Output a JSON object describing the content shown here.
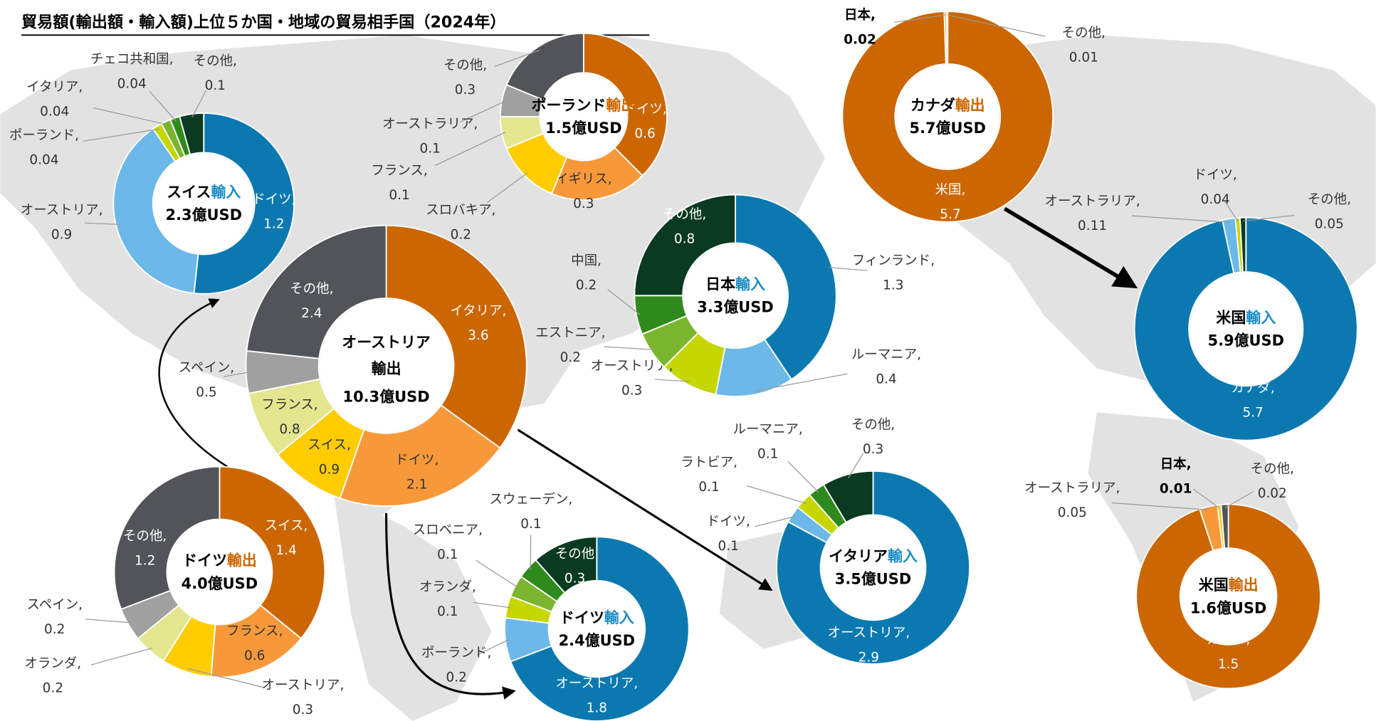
{
  "title": "貿易額(輸出額・輸入額)上位５か国・地域の貿易相手国（2024年）",
  "chart_data": [
    {
      "type": "pie",
      "donut": true,
      "center_name": "スイス",
      "flow": "輸入",
      "flow_color": "#1a8cc4",
      "total_label": "2.3億USD",
      "categories": [
        "ドイツ,",
        "オーストリア,",
        "ポーランド,",
        "イタリア,",
        "チェコ共和国,",
        "その他,"
      ],
      "values": [
        1.2,
        0.9,
        0.04,
        0.04,
        0.04,
        0.1
      ],
      "colors": [
        "#0b79b0",
        "#6cb8e8",
        "#c5d600",
        "#7ab530",
        "#2f8a1d",
        "#0a3a20"
      ]
    },
    {
      "type": "pie",
      "donut": true,
      "center_name": "オーストリア",
      "flow": "輸出",
      "flow_color": "#cc6600",
      "total_label": "10.3億USD",
      "categories": [
        "イタリア,",
        "ドイツ,",
        "スイス,",
        "フランス,",
        "スペイン,",
        "その他,"
      ],
      "values": [
        3.6,
        2.1,
        0.9,
        0.8,
        0.5,
        2.4
      ],
      "colors": [
        "#cc6600",
        "#f7993a",
        "#ffcc00",
        "#e3e68f",
        "#a0a0a0",
        "#515459"
      ]
    },
    {
      "type": "pie",
      "donut": true,
      "center_name": "ポーランド",
      "flow": "輸出",
      "flow_color": "#cc6600",
      "total_label": "1.5億USD",
      "categories": [
        "ドイツ,",
        "イギリス,",
        "スロバキア,",
        "フランス,",
        "オーストラリア,",
        "その他,"
      ],
      "values": [
        0.6,
        0.3,
        0.2,
        0.1,
        0.1,
        0.3
      ],
      "colors": [
        "#cc6600",
        "#f7993a",
        "#ffcc00",
        "#e3e68f",
        "#a0a0a0",
        "#515459"
      ]
    },
    {
      "type": "pie",
      "donut": true,
      "center_name": "日本",
      "flow": "輸入",
      "flow_color": "#1a8cc4",
      "total_label": "3.3億USD",
      "categories": [
        "フィンランド,",
        "ルーマニア,",
        "オーストリア,",
        "エストニア,",
        "中国,",
        "その他,"
      ],
      "values": [
        1.3,
        0.4,
        0.3,
        0.2,
        0.2,
        0.8
      ],
      "colors": [
        "#0b79b0",
        "#6cb8e8",
        "#c5d600",
        "#7ab530",
        "#2f8a1d",
        "#0a3a20"
      ]
    },
    {
      "type": "pie",
      "donut": true,
      "center_name": "カナダ",
      "flow": "輸出",
      "flow_color": "#cc6600",
      "total_label": "5.7億USD",
      "categories": [
        "米国,",
        "日本,",
        "その他,"
      ],
      "values": [
        5.7,
        0.02,
        0.01
      ],
      "colors": [
        "#cc6600",
        "#f7993a",
        "#515459"
      ]
    },
    {
      "type": "pie",
      "donut": true,
      "center_name": "米国",
      "flow": "輸入",
      "flow_color": "#1a8cc4",
      "total_label": "5.9億USD",
      "categories": [
        "カナダ,",
        "オーストラリア,",
        "ドイツ,",
        "その他,"
      ],
      "values": [
        5.7,
        0.11,
        0.04,
        0.05
      ],
      "colors": [
        "#0b79b0",
        "#6cb8e8",
        "#c5d600",
        "#0a3a20"
      ]
    },
    {
      "type": "pie",
      "donut": true,
      "center_name": "米国",
      "flow": "輸出",
      "flow_color": "#cc6600",
      "total_label": "1.6億USD",
      "categories": [
        "カナダ,",
        "オーストラリア,",
        "日本,",
        "その他,"
      ],
      "values": [
        1.5,
        0.05,
        0.01,
        0.02
      ],
      "colors": [
        "#cc6600",
        "#f7993a",
        "#ffcc00",
        "#515459"
      ]
    },
    {
      "type": "pie",
      "donut": true,
      "center_name": "ドイツ",
      "flow": "輸出",
      "flow_color": "#cc6600",
      "total_label": "4.0億USD",
      "categories": [
        "スイス,",
        "フランス,",
        "オーストリア,",
        "オランダ,",
        "スペイン,",
        "その他,"
      ],
      "values": [
        1.4,
        0.6,
        0.3,
        0.2,
        0.2,
        1.2
      ],
      "colors": [
        "#cc6600",
        "#f7993a",
        "#ffcc00",
        "#e3e68f",
        "#a0a0a0",
        "#515459"
      ]
    },
    {
      "type": "pie",
      "donut": true,
      "center_name": "ドイツ",
      "flow": "輸入",
      "flow_color": "#1a8cc4",
      "total_label": "2.4億USD",
      "categories": [
        "オーストリア,",
        "ポーランド,",
        "オランダ,",
        "スロベニア,",
        "スウェーデン,",
        "その他"
      ],
      "values": [
        1.8,
        0.2,
        0.1,
        0.1,
        0.1,
        0.3
      ],
      "colors": [
        "#0b79b0",
        "#6cb8e8",
        "#c5d600",
        "#7ab530",
        "#2f8a1d",
        "#0a3a20"
      ]
    },
    {
      "type": "pie",
      "donut": true,
      "center_name": "イタリア",
      "flow": "輸入",
      "flow_color": "#1a8cc4",
      "total_label": "3.5億USD",
      "categories": [
        "オーストリア,",
        "ドイツ,",
        "ラトビア,",
        "ルーマニア,",
        "その他,"
      ],
      "values": [
        2.9,
        0.1,
        0.1,
        0.1,
        0.3
      ],
      "colors": [
        "#0b79b0",
        "#6cb8e8",
        "#c5d600",
        "#2f8a1d",
        "#0a3a20"
      ]
    }
  ]
}
